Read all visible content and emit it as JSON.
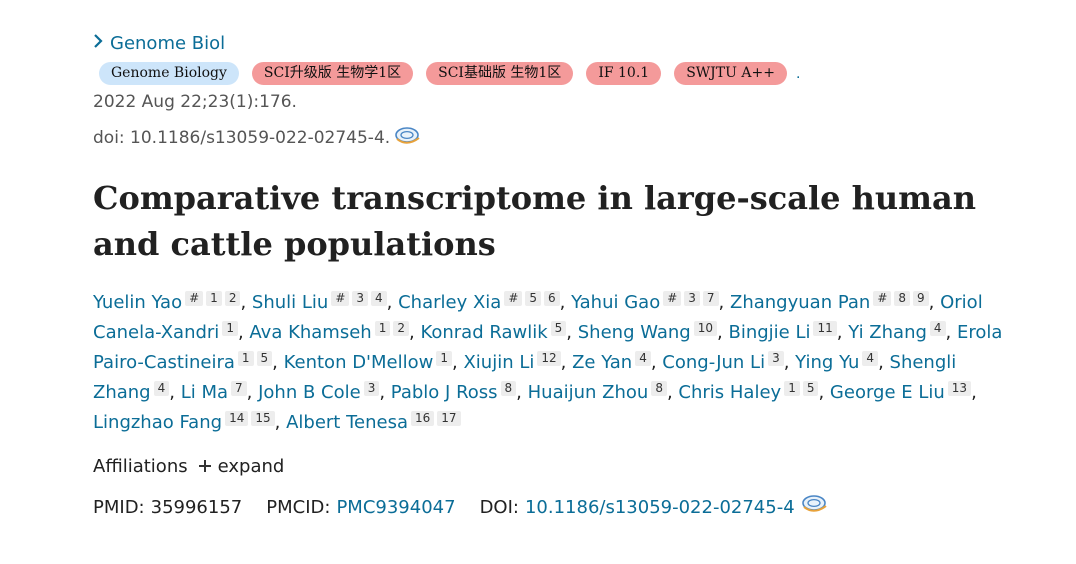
{
  "journal": {
    "label": "Genome Biol"
  },
  "badges": [
    {
      "text": "Genome Biology",
      "color": "#cde5fa"
    },
    {
      "text": "SCI升级版 生物学1区",
      "color": "#f49a9a"
    },
    {
      "text": "SCI基础版 生物1区",
      "color": "#f49a9a"
    },
    {
      "text": "IF 10.1",
      "color": "#f49a9a"
    },
    {
      "text": "SWJTU A++",
      "color": "#f49a9a"
    }
  ],
  "badges_trailing": ".",
  "citation": "2022 Aug 22;23(1):176.",
  "doi_text": "doi: 10.1186/s13059-022-02745-4.",
  "title": "Comparative transcriptome in large-scale human and cattle populations",
  "authors": [
    {
      "name": "Yuelin Yao",
      "sups": [
        "#",
        "1",
        "2"
      ]
    },
    {
      "name": "Shuli Liu",
      "sups": [
        "#",
        "3",
        "4"
      ]
    },
    {
      "name": "Charley Xia",
      "sups": [
        "#",
        "5",
        "6"
      ]
    },
    {
      "name": "Yahui Gao",
      "sups": [
        "#",
        "3",
        "7"
      ]
    },
    {
      "name": "Zhangyuan Pan",
      "sups": [
        "#",
        "8",
        "9"
      ]
    },
    {
      "name": "Oriol Canela-Xandri",
      "sups": [
        "1"
      ]
    },
    {
      "name": "Ava Khamseh",
      "sups": [
        "1",
        "2"
      ]
    },
    {
      "name": "Konrad Rawlik",
      "sups": [
        "5"
      ]
    },
    {
      "name": "Sheng Wang",
      "sups": [
        "10"
      ]
    },
    {
      "name": "Bingjie Li",
      "sups": [
        "11"
      ]
    },
    {
      "name": "Yi Zhang",
      "sups": [
        "4"
      ]
    },
    {
      "name": "Erola Pairo-Castineira",
      "sups": [
        "1",
        "5"
      ]
    },
    {
      "name": "Kenton D'Mellow",
      "sups": [
        "1"
      ]
    },
    {
      "name": "Xiujin Li",
      "sups": [
        "12"
      ]
    },
    {
      "name": "Ze Yan",
      "sups": [
        "4"
      ]
    },
    {
      "name": "Cong-Jun Li",
      "sups": [
        "3"
      ]
    },
    {
      "name": "Ying Yu",
      "sups": [
        "4"
      ]
    },
    {
      "name": "Shengli Zhang",
      "sups": [
        "4"
      ]
    },
    {
      "name": "Li Ma",
      "sups": [
        "7"
      ]
    },
    {
      "name": "John B Cole",
      "sups": [
        "3"
      ]
    },
    {
      "name": "Pablo J Ross",
      "sups": [
        "8"
      ]
    },
    {
      "name": "Huaijun Zhou",
      "sups": [
        "8"
      ]
    },
    {
      "name": "Chris Haley",
      "sups": [
        "1",
        "5"
      ]
    },
    {
      "name": "George E Liu",
      "sups": [
        "13"
      ]
    },
    {
      "name": "Lingzhao Fang",
      "sups": [
        "14",
        "15"
      ]
    },
    {
      "name": "Albert Tenesa",
      "sups": [
        "16",
        "17"
      ]
    }
  ],
  "affiliations": {
    "label": "Affiliations",
    "expand_label": "expand"
  },
  "ids": {
    "pmid_label": "PMID:",
    "pmid": "35996157",
    "pmcid_label": "PMCID:",
    "pmcid": "PMC9394047",
    "doi_label": "DOI:",
    "doi": "10.1186/s13059-022-02745-4"
  },
  "icons": {
    "journal_chevron": "chevron-right-icon",
    "lookup": "lookup-icon"
  }
}
